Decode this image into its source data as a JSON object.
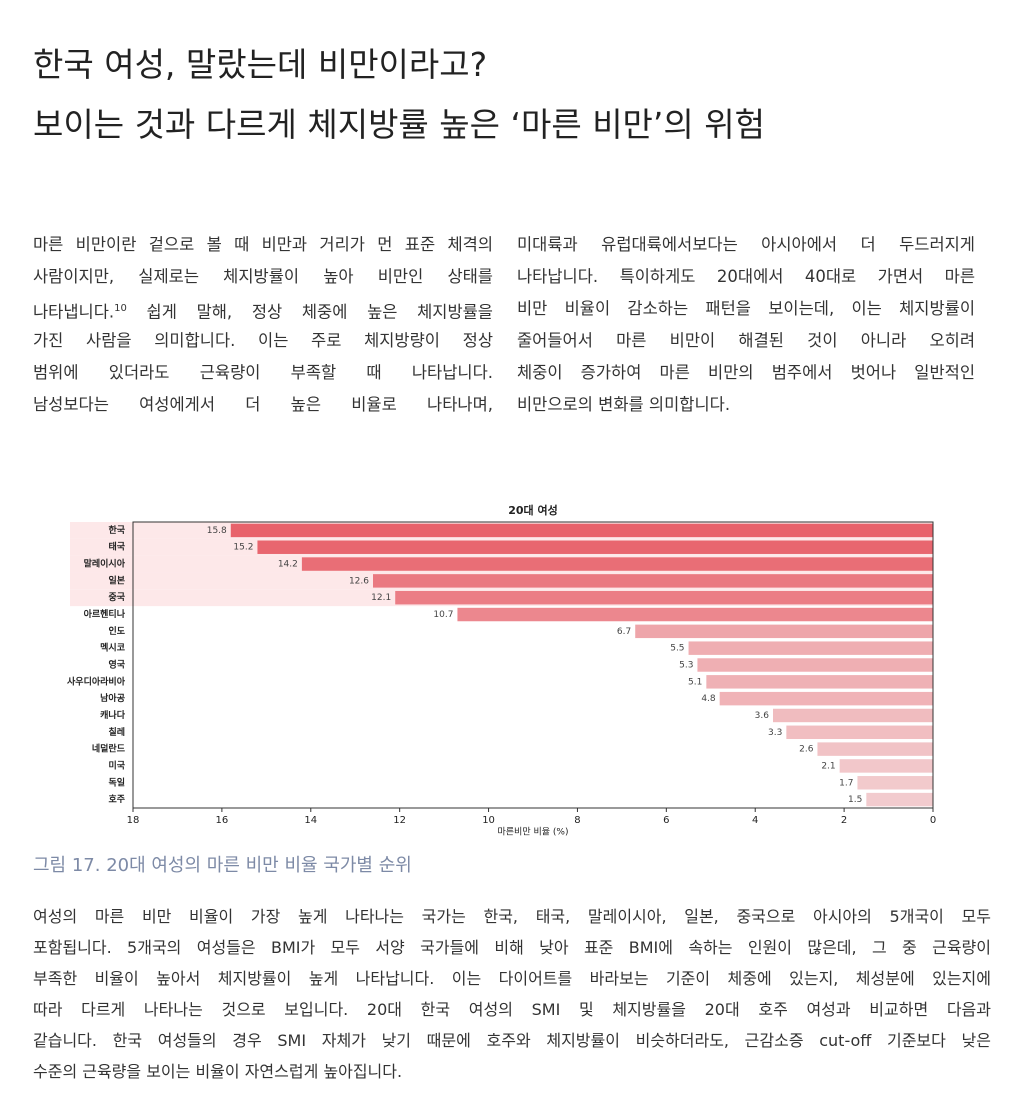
{
  "title": [
    "한국 여성, 말랐는데 비만이라고?",
    "보이는 것과 다르게 체지방률 높은 ‘마른 비만’의 위험"
  ],
  "intro_left": [
    "마른 비만이란 겉으로 볼 때 비만과 거리가 먼 표준 체격의",
    "사람이지만, 실제로는 체지방률이 높아 비만인 상태를",
    {
      "before": "나타냅니다.",
      "sup": "10",
      "after": " 쉽게 말해, 정상 체중에 높은 체지방률을"
    },
    "가진 사람을 의미합니다. 이는 주로 체지방량이 정상",
    "범위에 있더라도 근육량이 부족할 때 나타납니다.",
    "남성보다는 여성에게서 더 높은 비율로 나타나며,"
  ],
  "intro_right": [
    "미대륙과 유럽대륙에서보다는 아시아에서 더 두드러지게",
    "나타납니다. 특이하게도 20대에서 40대로 가면서 마른",
    "비만 비율이 감소하는 패턴을 보이는데, 이는 체지방률이",
    "줄어들어서 마른 비만이 해결된 것이 아니라 오히려",
    "체중이 증가하여 마른 비만의 범주에서 벗어나 일반적인",
    "비만으로의 변화를 의미합니다."
  ],
  "chart_data": {
    "type": "barh",
    "title": "20대 여성",
    "xlabel": "마른비만 비율 (%)",
    "categories": [
      "한국",
      "태국",
      "말레이시아",
      "일본",
      "중국",
      "아르헨티나",
      "인도",
      "멕시코",
      "영국",
      "사우디아라비아",
      "남아공",
      "캐나다",
      "칠레",
      "네덜란드",
      "미국",
      "독일",
      "호주"
    ],
    "values": [
      15.8,
      15.2,
      14.2,
      12.6,
      12.1,
      10.7,
      6.7,
      5.5,
      5.3,
      5.1,
      4.8,
      3.6,
      3.3,
      2.6,
      2.1,
      1.7,
      1.5
    ],
    "highlight": [
      true,
      true,
      true,
      true,
      true,
      false,
      false,
      false,
      false,
      false,
      false,
      false,
      false,
      false,
      false,
      false,
      false
    ],
    "highlight_color": "#fde8e9",
    "color_high": "#e8626b",
    "color_low": "#f3d6d8",
    "xlim": [
      18,
      0
    ],
    "xticks": [
      18,
      16,
      14,
      12,
      10,
      8,
      6,
      4,
      2,
      0
    ]
  },
  "caption": "그림 17. 20대 여성의 마른 비만 비율 국가별 순위",
  "body": [
    "여성의 마른 비만 비율이 가장 높게 나타나는 국가는 한국, 태국, 말레이시아, 일본, 중국으로 아시아의 5개국이 모두",
    "포함됩니다. 5개국의 여성들은 BMI가 모두 서양 국가들에 비해 낮아 표준 BMI에 속하는 인원이 많은데, 그 중 근육량이",
    "부족한 비율이 높아서 체지방률이 높게 나타납니다. 이는 다이어트를 바라보는 기준이 체중에 있는지, 체성분에 있는지에",
    "따라 다르게 나타나는 것으로 보입니다. 20대 한국 여성의 SMI 및 체지방률을 20대 호주 여성과 비교하면 다음과",
    "같습니다. 한국 여성들의 경우 SMI 자체가 낮기 때문에 호주와 체지방률이 비슷하더라도, 근감소증 cut-off 기준보다 낮은",
    "수준의 근육량을 보이는 비율이 자연스럽게 높아집니다."
  ]
}
